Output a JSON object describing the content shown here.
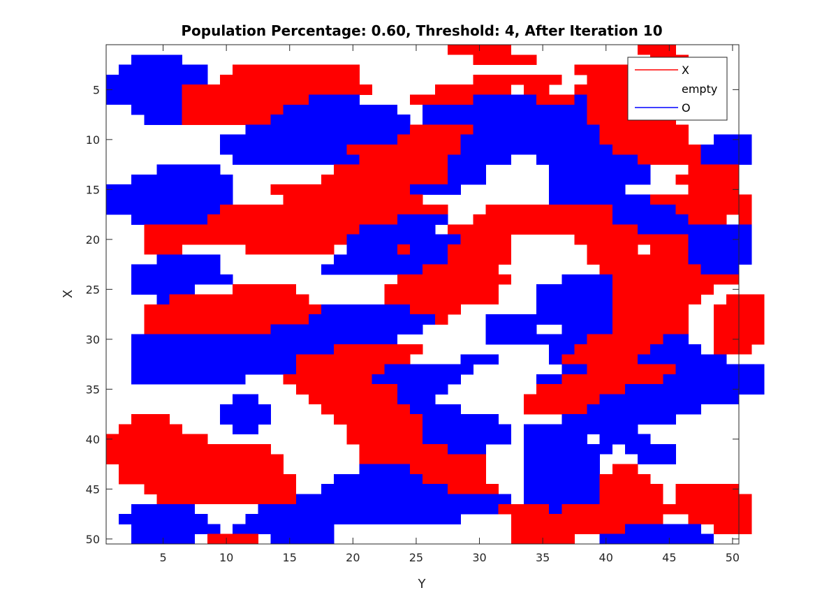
{
  "chart_data": {
    "type": "heatmap",
    "title": "Population Percentage: 0.60, Threshold: 4, After Iteration 10",
    "xlabel": "Y",
    "ylabel": "X",
    "grid": false,
    "x_range": [
      0.5,
      50.5
    ],
    "y_range": [
      0.5,
      50.5
    ],
    "y_direction": "reversed",
    "x_ticks": [
      "5",
      "10",
      "15",
      "20",
      "25",
      "30",
      "35",
      "40",
      "45",
      "50"
    ],
    "y_ticks": [
      "5",
      "10",
      "15",
      "20",
      "25",
      "30",
      "35",
      "40",
      "45",
      "50"
    ],
    "legend": {
      "position": "top-right",
      "entries": [
        {
          "label": "X",
          "color": "#ff0000"
        },
        {
          "label": "empty",
          "color": "#ffffff"
        },
        {
          "label": "O",
          "color": "#0000ff"
        }
      ]
    },
    "colors": {
      "X": "#ff0000",
      "O": "#0000ff",
      "empty": "#ffffff"
    },
    "value_key": {
      "X": "R",
      "O": "B",
      "empty": "."
    },
    "rows": [
      "...........................RRRRR..........RRR.....",
      "..BBBB.......................RRRRR.........RRR....",
      ".BBBBBBB..RRRRRRRRRR.................RRRRRRRRR....",
      "BBBBBBBB.RRRRRRRRRRR.........RRRRRRR..RRRRRRR.....",
      "BBBBBBRRRRRRRRRRRRRRR.....RRRRRR.RR..RRRRRRRR.....",
      "BBBBBBRRRRRRRRRRBBBB....RRRRRBBBBBRRRBRRRRRRRR....",
      "..BBBBRRRRRRRRBBBBBBBBB..BBBBBBBBBBBBBRRRRRRR.....",
      "...BBBRRRRRRRBBBBBBBBBBB.BBBBBBBBBBBBBRRRRRRR.....",
      "...........BBBBBBBBBBBBBRRRRRBBBBBBBBBBRRRRRRR.....",
      ".........BBBBBBBBBBBBBBRRRRRBBBBBBBBBBBRRRRRRR..BBB",
      ".........BBBBBBBBBBRRRRRRRRRBBBBBBBBBBBBRRRRRRRBBBB",
      "..........BBBBBBBBBBRRRRRRRBBBBB..BBBBBBBBRRRRRBBBB",
      "....BBBBB.........RRRRRRRRRBBB.....BBBBBBBB...RRRR.",
      "..BBBBBBBB.......RRRRRRRRRRBBB.....BBBBBBBB..RRRRR.",
      "BBBBBBBBBB...RRRRRRRRRRRBBBB.......BBBBBB.....RRRR.",
      "BBBBBBBBBB....RRRRRRRRRRR..........BBBBBBBBRRRRRRRR",
      "BBBBBBBBBRRRRRRRRRRRRRRRRRR...RRRRRRRRRRBBBBBRRRRRR",
      "..BBBBBBRRRRRRRRRRRRRRRBBBB..RRRRRRRRRRRBBBBBBRRR.R",
      "...RRRRRRRRRRRRRRRRRBBBBBB.RRRRRRRRRRRRRRRBBBBBBBBB",
      "...RRRRRRRRRRRRRRRRBBBBBBBBBRRRR.....RRRRRRRRRBBBBB",
      "...RRR.....RRRRRRR.BBBBRBBBRRRRR......RRRR.RRRBBBBB",
      "....BBBBB.........BBBBBBBBBRRRRR......RRRRRRRRBBBBB",
      "..BBBBBBB........BBBBBBBBRRRRRR........RRRRRRRRBBB.",
      "..BBBBBBBB.............RRRRRRRRR....BBBBRRRRRRRRRR.",
      "..BBBBB...RRRRR.......RRRRRRRRR...BBBBBBRRRRRRRR...",
      "....BRRRRRRRRRRR......RRRRRRRRR...BBBBBBRRRRRRR..RRR",
      "...RRRRRRRRRRRRRRBBBBBBBRRRR......BBBBBBRRRRRR..RRRR",
      "...RRRRRRRRRRRRRBBBBBBBBBBR...BBBBBBBBBBRRRRRR..RRRR",
      "...RRRRRRRRRRBBBBBBBBBBBB.....BBBB..BBBBRRRRRR..RRRR",
      "..BBBBBBBBBBBBBBBBBBBBB.......BBBBBBBBRRRRRRBB..RRRR",
      "..BBBBBBBBBBBBBBBBRRRRRRR..........BBRRRRRRBBBB.RRR",
      "..BBBBBBBBBBBBBRRRRRRRRR....BBB....BRRRRRRBBBBBBB..",
      "..BBBBBBBBBBBBBRRRRRRRBBBBBBB.......BBRRRRRRRBBBBBBB",
      "..BBBBBBBBB...RRRRRRRBBBBBBB......BBRRRRRRRRBBBBBBBB",
      "...............RRRRRRRRBBBB.......RRRRRRRBBBBBBBBBBB",
      "..........BB....RRRRRRRBBB.......RRRRRRBBBBBBBBBBB.",
      ".........BBBB....RRRRRRRBBBB.....RRRRRBBBBBBBBB....",
      "..RRR....BBBB.....RRRRRRRBBBBBB.....BBBBBBBBB......",
      ".RRRRR....BB.......RRRRRRBBBBBBB.BBBBBBBBB.........",
      "RRRRRRRR...........RRRRRRBBBBBBB.BBBBB.BBBB........",
      "RRRRRRRRRRRRR.......RRRRRRRBBB...BBBBBBB.BBBB......",
      "RRRRRRRRRRRRRR......RRRRRRRRRR...BBBBBB...BBB......",
      ".RRRRRRRRRRRRR......BBBBRRRRRR...BBBBBB.RR.........",
      ".RRRRRRRRRRRRRR...BBBBBBBRRRRR...BBBBBBRRRR........",
      "...RRRRRRRRRRRR..BBBBBBBBBBRRRR..BBBBBBRRRRR.RRRRR.",
      "....RRRRRRRRRRRBBBBBBBBBBBBBBBBB.BBBBBBRRRRR.RRRRRR",
      "..BBBBB.....BBBBBBBBBBBBBBBBBBBRRRRBRRRRRRRRRRRRRRR",
      ".BBBBBBB...BBBBBBBBBBBBBBBBB....RRRRRRRRRRRR..RRRRR",
      "..BBBBBBB.BBBBBBBB..............RRRRRRRRRBBBBBB.RRR",
      "..BBBBB.RRRR.BBBBB..............RRRRR..BBBBBBBBB..."
    ]
  }
}
